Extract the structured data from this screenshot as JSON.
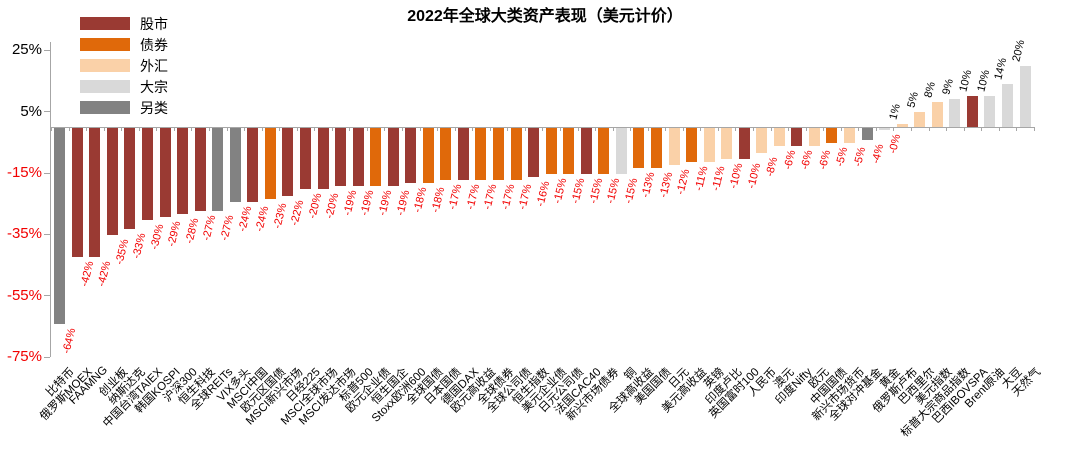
{
  "title": "2022年全球大类资产表现（美元计价）",
  "legend": {
    "position": "top-left",
    "items": [
      {
        "label": "股市",
        "color": "#9A3A33"
      },
      {
        "label": "债券",
        "color": "#E0690A"
      },
      {
        "label": "外汇",
        "color": "#FAD1A8"
      },
      {
        "label": "大宗",
        "color": "#D9D9D9"
      },
      {
        "label": "另类",
        "color": "#828282"
      }
    ]
  },
  "colors": {
    "negative_text": "#F20000",
    "positive_text": "#000000",
    "axis": "#A6A6A6"
  },
  "chart_data": {
    "type": "bar",
    "title": "2022年全球大类资产表现（美元计价）",
    "xlabel": "",
    "ylabel": "",
    "grid": false,
    "legend_position": "top-left",
    "ylim": [
      -75,
      30
    ],
    "yticks": [
      {
        "label": "25%",
        "value": 25
      },
      {
        "label": "5%",
        "value": 5
      },
      {
        "label": "-15%",
        "value": -15
      },
      {
        "label": "-35%",
        "value": -35
      },
      {
        "label": "-55%",
        "value": -55
      },
      {
        "label": "-75%",
        "value": -75
      }
    ],
    "categories": [
      "比特币",
      "俄罗斯MOEX",
      "FAAMNG",
      "创业板",
      "纳斯达克",
      "中国台湾TAIEX",
      "韩国KOSPI",
      "沪深300",
      "恒生科技",
      "全球REITs",
      "VIX多头",
      "MSCI中国",
      "欧元区国债",
      "MSCI新兴市场",
      "日经225",
      "MSCI全球市场",
      "MSCI发达市场",
      "标普500",
      "欧元企业债",
      "恒生国企",
      "Stoxx欧洲600",
      "全球国债",
      "日本国债",
      "德国DAX",
      "欧元高收益",
      "全球债券",
      "全球公司债",
      "恒生指数",
      "美元企业债",
      "日元公司债",
      "法国CAC40",
      "新兴市场债券",
      "铜",
      "全球高收益",
      "美国国债",
      "日元",
      "美元高收益",
      "英镑",
      "印度卢比",
      "英国富时100",
      "人民币",
      "澳元",
      "印度Nifty",
      "欧元",
      "中国国债",
      "新兴市场货币",
      "全球对冲基金",
      "黄金",
      "俄罗斯卢布",
      "巴西里尔",
      "美元指数",
      "标普大宗商品指数",
      "巴西IBOVSPA",
      "Brent原油",
      "大豆",
      "天然气"
    ],
    "values": [
      -64,
      -42,
      -42,
      -35,
      -33,
      -30,
      -29,
      -28,
      -27,
      -27,
      -24,
      -24,
      -23,
      -22,
      -20,
      -20,
      -19,
      -19,
      -19,
      -19,
      -18,
      -18,
      -17,
      -17,
      -17,
      -17,
      -17,
      -16,
      -15,
      -15,
      -15,
      -15,
      -15,
      -13,
      -13,
      -12,
      -11,
      -11,
      -10,
      -10,
      -8,
      -6,
      -6,
      -6,
      -5,
      -5,
      -4,
      0,
      1,
      5,
      8,
      9,
      10,
      10,
      14,
      20
    ],
    "value_labels": [
      "-64%",
      "-42%",
      "-42%",
      "-35%",
      "-33%",
      "-30%",
      "-29%",
      "-28%",
      "-27%",
      "-27%",
      "-24%",
      "-24%",
      "-23%",
      "-22%",
      "-20%",
      "-20%",
      "-19%",
      "-19%",
      "-19%",
      "-19%",
      "-18%",
      "-18%",
      "-17%",
      "-17%",
      "-17%",
      "-17%",
      "-17%",
      "-16%",
      "-15%",
      "-15%",
      "-15%",
      "-15%",
      "-15%",
      "-13%",
      "-13%",
      "-12%",
      "-11%",
      "-11%",
      "-10%",
      "-10%",
      "-8%",
      "-6%",
      "-6%",
      "-6%",
      "-5%",
      "-5%",
      "-4%",
      "-0%",
      "1%",
      "5%",
      "8%",
      "9%",
      "10%",
      "10%",
      "14%",
      "20%"
    ],
    "groups": [
      "另类",
      "股市",
      "股市",
      "股市",
      "股市",
      "股市",
      "股市",
      "股市",
      "股市",
      "另类",
      "另类",
      "股市",
      "债券",
      "股市",
      "股市",
      "股市",
      "股市",
      "股市",
      "债券",
      "股市",
      "股市",
      "债券",
      "债券",
      "股市",
      "债券",
      "债券",
      "债券",
      "股市",
      "债券",
      "债券",
      "股市",
      "债券",
      "大宗",
      "债券",
      "债券",
      "外汇",
      "债券",
      "外汇",
      "外汇",
      "股市",
      "外汇",
      "外汇",
      "股市",
      "外汇",
      "债券",
      "外汇",
      "另类",
      "大宗",
      "外汇",
      "外汇",
      "外汇",
      "大宗",
      "股市",
      "大宗",
      "大宗",
      "大宗"
    ]
  }
}
